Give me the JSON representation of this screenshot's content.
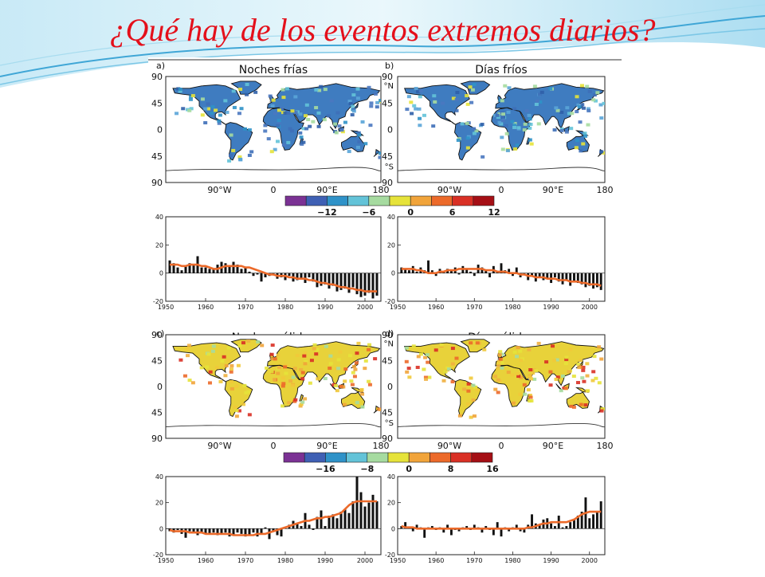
{
  "slide": {
    "title": "¿Qué hay de los eventos extremos diarios?",
    "accent_color": "#e4101b"
  },
  "figure": {
    "panels": [
      {
        "letter": "a)",
        "title": "Noches frías",
        "map_tone": "cold"
      },
      {
        "letter": "b)",
        "title": "Días fríos",
        "map_tone": "cold"
      },
      {
        "letter": "c)",
        "title": "Noches cálidas",
        "map_tone": "warm"
      },
      {
        "letter": "d)",
        "title": "Días cálidos",
        "map_tone": "warm"
      }
    ],
    "map_lat_ticks": [
      "90",
      "45",
      "0",
      "45",
      "90"
    ],
    "map_lat_suffix_right": [
      "°N",
      "°S"
    ],
    "map_lon_ticks": [
      "90°W",
      "0",
      "90°E",
      "180"
    ],
    "colorbar_top": {
      "labels": [
        "−12",
        "−6",
        "0",
        "6",
        "12"
      ],
      "colors": [
        "#7b3294",
        "#3f60b4",
        "#2f92c8",
        "#63c3d8",
        "#a6dba0",
        "#e6e33a",
        "#f1a43a",
        "#ec6a2a",
        "#d93025",
        "#a50f15"
      ]
    },
    "colorbar_bottom": {
      "labels": [
        "−16",
        "−8",
        "0",
        "8",
        "16"
      ],
      "colors": [
        "#7b3294",
        "#3f60b4",
        "#2f92c8",
        "#63c3d8",
        "#a6dba0",
        "#e6e33a",
        "#f1a43a",
        "#ec6a2a",
        "#d93025",
        "#a50f15"
      ]
    }
  },
  "chart_data": [
    {
      "type": "bar",
      "panel": "a)",
      "x": [
        1951,
        1952,
        1953,
        1954,
        1955,
        1956,
        1957,
        1958,
        1959,
        1960,
        1961,
        1962,
        1963,
        1964,
        1965,
        1966,
        1967,
        1968,
        1969,
        1970,
        1971,
        1972,
        1973,
        1974,
        1975,
        1976,
        1977,
        1978,
        1979,
        1980,
        1981,
        1982,
        1983,
        1984,
        1985,
        1986,
        1987,
        1988,
        1989,
        1990,
        1991,
        1992,
        1993,
        1994,
        1995,
        1996,
        1997,
        1998,
        1999,
        2000,
        2001,
        2002,
        2003
      ],
      "values": [
        9,
        7,
        4,
        2,
        5,
        7,
        6,
        12,
        4,
        4,
        3,
        3,
        6,
        8,
        7,
        5,
        8,
        6,
        3,
        4,
        1,
        -2,
        -1,
        -6,
        -3,
        -2,
        -1,
        -4,
        -3,
        -5,
        -2,
        -6,
        -5,
        -4,
        -7,
        -3,
        -6,
        -10,
        -9,
        -8,
        -11,
        -9,
        -13,
        -12,
        -11,
        -14,
        -10,
        -15,
        -17,
        -16,
        -14,
        -18,
        -16
      ],
      "trend": [
        6,
        6,
        6,
        5,
        5,
        6,
        6,
        6,
        5,
        5,
        4,
        3,
        3,
        4,
        5,
        5,
        5,
        5,
        5,
        4,
        4,
        3,
        2,
        1,
        0,
        -1,
        -1,
        -2,
        -2,
        -2,
        -3,
        -3,
        -4,
        -4,
        -4,
        -5,
        -5,
        -6,
        -7,
        -7,
        -8,
        -8,
        -9,
        -10,
        -10,
        -11,
        -11,
        -12,
        -12,
        -13,
        -13,
        -13,
        -13
      ],
      "ylim": [
        -20,
        40
      ],
      "yticks": [
        -20,
        0,
        20,
        40
      ],
      "xlim": [
        1950,
        2004
      ],
      "xticks": [
        1950,
        1960,
        1970,
        1980,
        1990,
        2000
      ]
    },
    {
      "type": "bar",
      "panel": "b)",
      "x": [
        1951,
        1952,
        1953,
        1954,
        1955,
        1956,
        1957,
        1958,
        1959,
        1960,
        1961,
        1962,
        1963,
        1964,
        1965,
        1966,
        1967,
        1968,
        1969,
        1970,
        1971,
        1972,
        1973,
        1974,
        1975,
        1976,
        1977,
        1978,
        1979,
        1980,
        1981,
        1982,
        1983,
        1984,
        1985,
        1986,
        1987,
        1988,
        1989,
        1990,
        1991,
        1992,
        1993,
        1994,
        1995,
        1996,
        1997,
        1998,
        1999,
        2000,
        2001,
        2002,
        2003
      ],
      "values": [
        4,
        3,
        2,
        5,
        1,
        4,
        2,
        9,
        2,
        -2,
        3,
        1,
        3,
        2,
        4,
        -1,
        5,
        3,
        1,
        -2,
        6,
        4,
        2,
        -3,
        5,
        1,
        7,
        2,
        3,
        -2,
        4,
        -3,
        -1,
        -5,
        -2,
        -6,
        -3,
        -5,
        -4,
        -7,
        -3,
        -6,
        -8,
        -5,
        -9,
        -6,
        -7,
        -8,
        -10,
        -9,
        -11,
        -10,
        -12
      ],
      "trend": [
        3,
        3,
        3,
        3,
        2,
        2,
        1,
        0,
        0,
        0,
        1,
        1,
        2,
        2,
        2,
        3,
        3,
        3,
        3,
        3,
        3,
        3,
        2,
        2,
        2,
        1,
        1,
        1,
        0,
        0,
        0,
        -1,
        -1,
        -2,
        -2,
        -3,
        -3,
        -3,
        -4,
        -4,
        -4,
        -5,
        -5,
        -5,
        -6,
        -6,
        -6,
        -7,
        -7,
        -8,
        -8,
        -8,
        -9
      ],
      "ylim": [
        -20,
        40
      ],
      "yticks": [
        -20,
        0,
        20,
        40
      ],
      "xlim": [
        1950,
        2004
      ],
      "xticks": [
        1950,
        1960,
        1970,
        1980,
        1990,
        2000
      ]
    },
    {
      "type": "bar",
      "panel": "c)",
      "x": [
        1951,
        1952,
        1953,
        1954,
        1955,
        1956,
        1957,
        1958,
        1959,
        1960,
        1961,
        1962,
        1963,
        1964,
        1965,
        1966,
        1967,
        1968,
        1969,
        1970,
        1971,
        1972,
        1973,
        1974,
        1975,
        1976,
        1977,
        1978,
        1979,
        1980,
        1981,
        1982,
        1983,
        1984,
        1985,
        1986,
        1987,
        1988,
        1989,
        1990,
        1991,
        1992,
        1993,
        1994,
        1995,
        1996,
        1997,
        1998,
        1999,
        2000,
        2001,
        2002,
        2003
      ],
      "values": [
        -2,
        -3,
        -1,
        -4,
        -7,
        -2,
        -3,
        -5,
        -3,
        -4,
        -4,
        -3,
        -5,
        -4,
        -3,
        -6,
        -5,
        -3,
        -4,
        -6,
        -5,
        -3,
        -6,
        -4,
        1,
        -8,
        -2,
        -5,
        -6,
        1,
        3,
        6,
        4,
        2,
        12,
        3,
        -1,
        9,
        14,
        2,
        10,
        11,
        8,
        13,
        15,
        12,
        21,
        40,
        28,
        17,
        20,
        26,
        21
      ],
      "trend": [
        -1,
        -2,
        -2,
        -2,
        -2,
        -3,
        -3,
        -3,
        -3,
        -4,
        -4,
        -4,
        -4,
        -4,
        -4,
        -4,
        -5,
        -5,
        -5,
        -5,
        -5,
        -5,
        -4,
        -4,
        -4,
        -3,
        -2,
        -1,
        0,
        1,
        2,
        3,
        4,
        5,
        6,
        6,
        7,
        8,
        8,
        9,
        9,
        10,
        11,
        12,
        15,
        18,
        20,
        21,
        21,
        21,
        21,
        21,
        21
      ],
      "ylim": [
        -20,
        40
      ],
      "yticks": [
        -20,
        0,
        20,
        40
      ],
      "xlim": [
        1950,
        2004
      ],
      "xticks": [
        1950,
        1960,
        1970,
        1980,
        1990,
        2000
      ]
    },
    {
      "type": "bar",
      "panel": "d)",
      "x": [
        1951,
        1952,
        1953,
        1954,
        1955,
        1956,
        1957,
        1958,
        1959,
        1960,
        1961,
        1962,
        1963,
        1964,
        1965,
        1966,
        1967,
        1968,
        1969,
        1970,
        1971,
        1972,
        1973,
        1974,
        1975,
        1976,
        1977,
        1978,
        1979,
        1980,
        1981,
        1982,
        1983,
        1984,
        1985,
        1986,
        1987,
        1988,
        1989,
        1990,
        1991,
        1992,
        1993,
        1994,
        1995,
        1996,
        1997,
        1998,
        1999,
        2000,
        2001,
        2002,
        2003
      ],
      "values": [
        2,
        5,
        1,
        -2,
        3,
        1,
        -7,
        1,
        2,
        -1,
        1,
        -3,
        3,
        -5,
        -1,
        -2,
        1,
        2,
        -1,
        3,
        1,
        -3,
        2,
        -1,
        -5,
        5,
        -6,
        1,
        -2,
        1,
        3,
        -2,
        -3,
        3,
        11,
        4,
        3,
        7,
        8,
        4,
        2,
        10,
        1,
        2,
        5,
        7,
        10,
        13,
        24,
        8,
        11,
        13,
        21
      ],
      "trend": [
        2,
        1,
        1,
        1,
        0,
        0,
        0,
        0,
        0,
        0,
        0,
        0,
        0,
        0,
        0,
        0,
        0,
        0,
        0,
        0,
        0,
        0,
        0,
        0,
        0,
        0,
        0,
        0,
        0,
        0,
        0,
        0,
        0,
        1,
        1,
        2,
        3,
        4,
        4,
        5,
        5,
        5,
        5,
        5,
        6,
        7,
        9,
        11,
        12,
        13,
        13,
        13,
        13
      ],
      "ylim": [
        -20,
        40
      ],
      "yticks": [
        -20,
        0,
        20,
        40
      ],
      "xlim": [
        1950,
        2004
      ],
      "xticks": [
        1950,
        1960,
        1970,
        1980,
        1990,
        2000
      ]
    }
  ]
}
